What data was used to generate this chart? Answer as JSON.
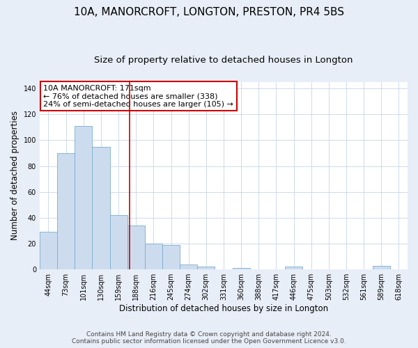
{
  "title": "10A, MANORCROFT, LONGTON, PRESTON, PR4 5BS",
  "subtitle": "Size of property relative to detached houses in Longton",
  "xlabel": "Distribution of detached houses by size in Longton",
  "ylabel": "Number of detached properties",
  "bar_labels": [
    "44sqm",
    "73sqm",
    "101sqm",
    "130sqm",
    "159sqm",
    "188sqm",
    "216sqm",
    "245sqm",
    "274sqm",
    "302sqm",
    "331sqm",
    "360sqm",
    "388sqm",
    "417sqm",
    "446sqm",
    "475sqm",
    "503sqm",
    "532sqm",
    "561sqm",
    "589sqm",
    "618sqm"
  ],
  "bar_values": [
    29,
    90,
    111,
    95,
    42,
    34,
    20,
    19,
    4,
    2,
    0,
    1,
    0,
    0,
    2,
    0,
    0,
    0,
    0,
    3,
    0
  ],
  "bar_color": "#ccdcee",
  "bar_edge_color": "#7aadce",
  "vline_x": 4.62,
  "vline_color": "#cc0000",
  "annotation_text": "10A MANORCROFT: 171sqm\n← 76% of detached houses are smaller (338)\n24% of semi-detached houses are larger (105) →",
  "annotation_box_color": "#ffffff",
  "annotation_box_edge": "#cc0000",
  "ylim": [
    0,
    145
  ],
  "yticks": [
    0,
    20,
    40,
    60,
    80,
    100,
    120,
    140
  ],
  "footer_line1": "Contains HM Land Registry data © Crown copyright and database right 2024.",
  "footer_line2": "Contains public sector information licensed under the Open Government Licence v3.0.",
  "bg_color": "#e8eef8",
  "plot_bg_color": "#ffffff",
  "title_fontsize": 11,
  "subtitle_fontsize": 9.5,
  "axis_label_fontsize": 8.5,
  "tick_fontsize": 7,
  "annotation_fontsize": 8,
  "footer_fontsize": 6.5
}
